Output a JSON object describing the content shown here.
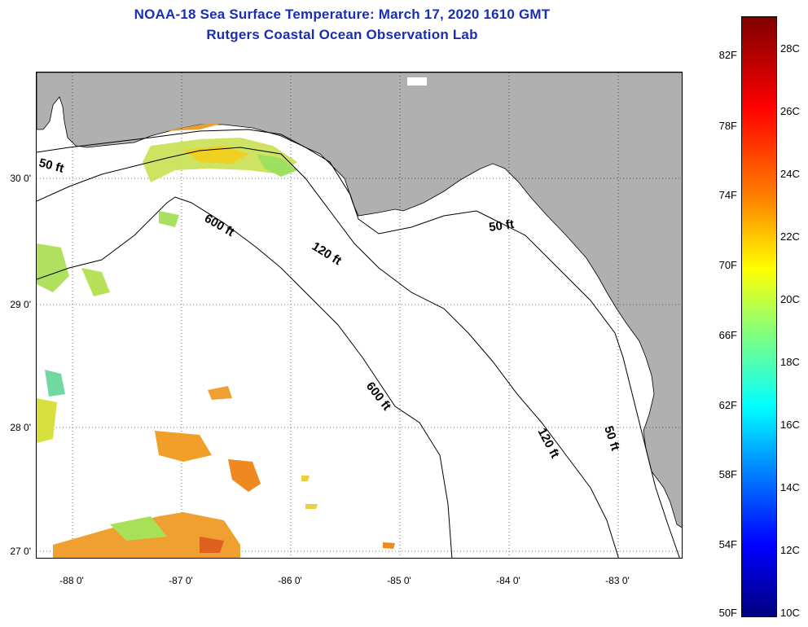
{
  "title": {
    "line1": "NOAA-18 Sea Surface Temperature:  March 17, 2020 1610 GMT",
    "line2": "Rutgers Coastal Ocean Observation Lab"
  },
  "map": {
    "y_axis_labels": [
      "30 0'",
      "29 0'",
      "28 0'",
      "27 0'"
    ],
    "x_axis_labels": [
      "-88 0'",
      "-87 0'",
      "-86 0'",
      "-85 0'",
      "-84 0'",
      "-83 0'"
    ],
    "depth_labels": {
      "d50_west": "50 ft",
      "d600_north": "600 ft",
      "d120_north": "120 ft",
      "d50_east": "50 ft",
      "d600_south": "600 ft",
      "d120_south": "120 ft",
      "d50_south": "50 ft"
    },
    "colors": {
      "land": "#b0b0b0",
      "water": "#ffffff",
      "contour": "#000000"
    }
  },
  "colorbar": {
    "fahrenheit": [
      "82F",
      "78F",
      "74F",
      "70F",
      "66F",
      "62F",
      "58F",
      "54F",
      "50F"
    ],
    "celsius": [
      "28C",
      "26C",
      "24C",
      "22C",
      "20C",
      "18C",
      "16C",
      "14C",
      "12C",
      "10C"
    ],
    "range_c": [
      10,
      29
    ]
  }
}
